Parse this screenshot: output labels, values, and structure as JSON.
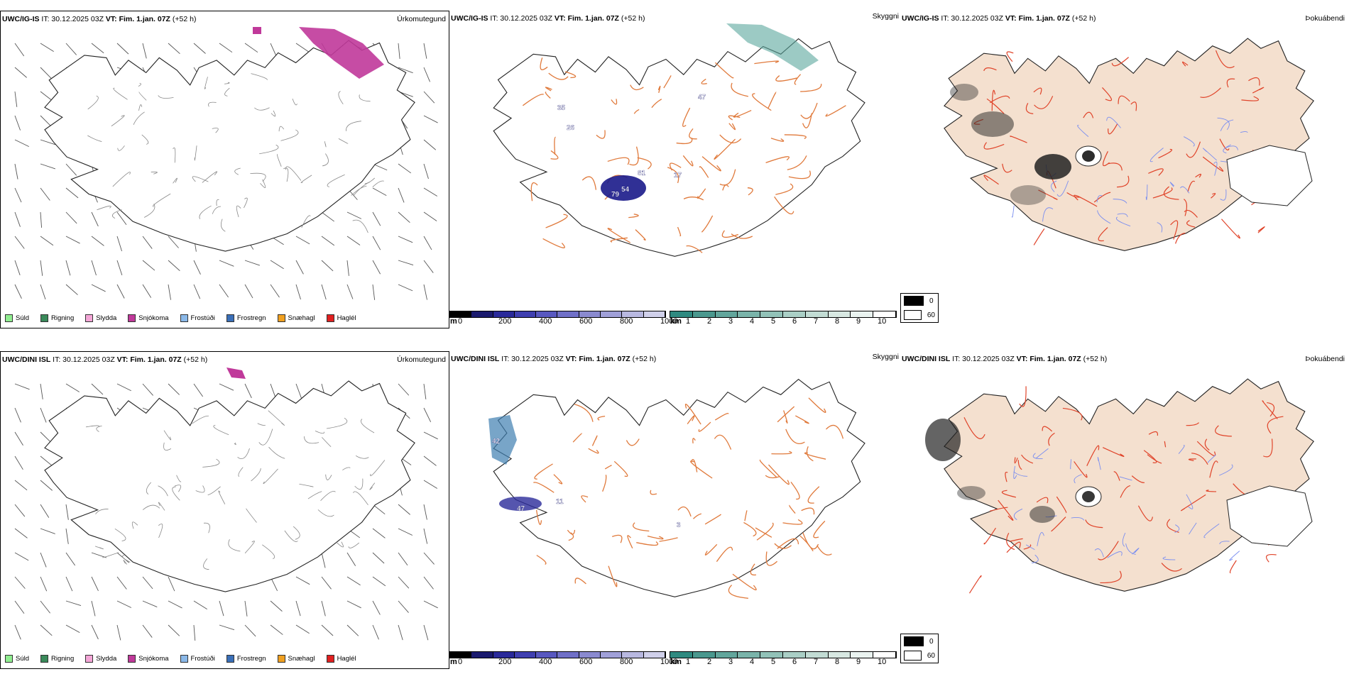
{
  "rows": [
    {
      "model_label": "UWC/IG-IS",
      "it_text": "IT: 30.12.2025 03Z",
      "vt_label": "VT:",
      "vt_text": "Fim. 1.jan. 07Z",
      "lead_text": "(+52 h)",
      "panel_titles": [
        "Úrkomutegund",
        "Skyggni",
        "Þokuábendi"
      ],
      "value_labels": [
        "81",
        "54",
        "79",
        "17",
        "26",
        "35",
        "47"
      ]
    },
    {
      "model_label": "UWC/DINI ISL",
      "it_text": "IT: 30.12.2025 03Z",
      "vt_label": "VT:",
      "vt_text": "Fim. 1.jan. 07Z",
      "lead_text": "(+52 h)",
      "panel_titles": [
        "Úrkomutegund",
        "Skyggni",
        "Þokuábendi"
      ],
      "value_labels": [
        "11",
        "47",
        "3",
        "42"
      ]
    }
  ],
  "precip_legend": [
    {
      "label": "Súld",
      "color": "#90ee90"
    },
    {
      "label": "Rigning",
      "color": "#3a8a5a"
    },
    {
      "label": "Slydda",
      "color": "#f4a6d7"
    },
    {
      "label": "Snjókoma",
      "color": "#c0399a"
    },
    {
      "label": "Frostúði",
      "color": "#8ab8e8"
    },
    {
      "label": "Frostregn",
      "color": "#3a6fb8"
    },
    {
      "label": "Snæhagl",
      "color": "#f0a020"
    },
    {
      "label": "Haglél",
      "color": "#e02020"
    }
  ],
  "ceiling_bar": {
    "unit": "m",
    "ticks": [
      "0",
      "200",
      "400",
      "600",
      "800",
      "1000"
    ],
    "colors": [
      "#000000",
      "#1a1a6e",
      "#2a2a9a",
      "#3f3fb0",
      "#5858c0",
      "#7070c8",
      "#8a8ad0",
      "#a0a0d8",
      "#b8b8e0",
      "#d0d0ea"
    ]
  },
  "vis_bar": {
    "unit": "km",
    "ticks": [
      "1",
      "2",
      "3",
      "4",
      "5",
      "6",
      "7",
      "8",
      "9",
      "10"
    ],
    "colors": [
      "#2f8a80",
      "#4a988e",
      "#62a69c",
      "#7ab4aa",
      "#92c2b8",
      "#aacfc6",
      "#c2dcd4",
      "#d8e8e2",
      "#eaf3f0",
      "#ffffff"
    ]
  },
  "fog_legend": [
    {
      "label": "0",
      "color": "#000000"
    },
    {
      "label": "60",
      "color": "#ffffff"
    }
  ],
  "colors": {
    "land": "#f4e0cf",
    "road": "#e07a3c",
    "road_red": "#e0442a",
    "river": "#7a8ef0"
  }
}
